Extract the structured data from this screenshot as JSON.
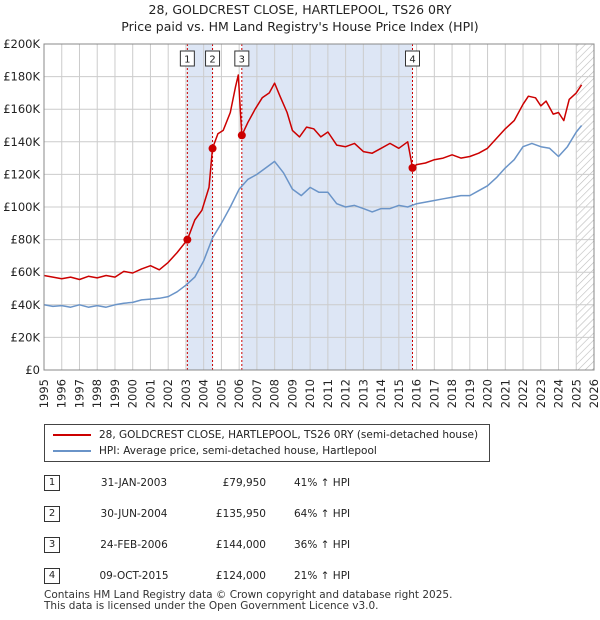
{
  "title": "28, GOLDCREST CLOSE, HARTLEPOOL, TS26 0RY",
  "subtitle": "Price paid vs. HM Land Registry's House Price Index (HPI)",
  "colors": {
    "property": "#cc0000",
    "hpi": "#6a94c8",
    "band": "#dde6f5",
    "grid": "#cccccc",
    "marker_line": "#cc0000",
    "hatch": "#bbbbbb"
  },
  "chart_data": {
    "type": "line",
    "title": "28, GOLDCREST CLOSE, HARTLEPOOL, TS26 0RY",
    "subtitle": "Price paid vs. HM Land Registry's House Price Index (HPI)",
    "xlim": [
      1995,
      2026
    ],
    "ylim": [
      0,
      200000
    ],
    "y_ticks": [
      0,
      20000,
      40000,
      60000,
      80000,
      100000,
      120000,
      140000,
      160000,
      180000,
      200000
    ],
    "y_tick_labels": [
      "£0",
      "£20K",
      "£40K",
      "£60K",
      "£80K",
      "£100K",
      "£120K",
      "£140K",
      "£160K",
      "£180K",
      "£200K"
    ],
    "x_ticks": [
      1995,
      1996,
      1997,
      1998,
      1999,
      2000,
      2001,
      2002,
      2003,
      2004,
      2005,
      2006,
      2007,
      2008,
      2009,
      2010,
      2011,
      2012,
      2013,
      2014,
      2015,
      2016,
      2017,
      2018,
      2019,
      2020,
      2021,
      2022,
      2023,
      2024,
      2025,
      2026
    ],
    "grid": true,
    "shaded_periods": [
      [
        2003.08,
        2004.5
      ],
      [
        2006.15,
        2015.77
      ]
    ],
    "hatched_from": 2025.0,
    "series": [
      {
        "name": "28, GOLDCREST CLOSE, HARTLEPOOL, TS26 0RY (semi-detached house)",
        "points": [
          [
            1995.0,
            58000
          ],
          [
            1995.5,
            57000
          ],
          [
            1996.0,
            56000
          ],
          [
            1996.5,
            57000
          ],
          [
            1997.0,
            55500
          ],
          [
            1997.5,
            57500
          ],
          [
            1998.0,
            56500
          ],
          [
            1998.5,
            58000
          ],
          [
            1999.0,
            57000
          ],
          [
            1999.5,
            60500
          ],
          [
            2000.0,
            59500
          ],
          [
            2000.5,
            62000
          ],
          [
            2001.0,
            64000
          ],
          [
            2001.5,
            61500
          ],
          [
            2002.0,
            66000
          ],
          [
            2002.5,
            72000
          ],
          [
            2003.08,
            79950
          ],
          [
            2003.5,
            92000
          ],
          [
            2003.9,
            98000
          ],
          [
            2004.3,
            112000
          ],
          [
            2004.5,
            135950
          ],
          [
            2004.8,
            145000
          ],
          [
            2005.1,
            147000
          ],
          [
            2005.5,
            158000
          ],
          [
            2005.8,
            174000
          ],
          [
            2005.95,
            181000
          ],
          [
            2006.15,
            144000
          ],
          [
            2006.5,
            152000
          ],
          [
            2006.9,
            160000
          ],
          [
            2007.3,
            167000
          ],
          [
            2007.7,
            170000
          ],
          [
            2008.0,
            176000
          ],
          [
            2008.3,
            168000
          ],
          [
            2008.7,
            158000
          ],
          [
            2009.0,
            147000
          ],
          [
            2009.4,
            143000
          ],
          [
            2009.8,
            149000
          ],
          [
            2010.2,
            148000
          ],
          [
            2010.6,
            143000
          ],
          [
            2011.0,
            146000
          ],
          [
            2011.5,
            138000
          ],
          [
            2012.0,
            137000
          ],
          [
            2012.5,
            139000
          ],
          [
            2013.0,
            134000
          ],
          [
            2013.5,
            133000
          ],
          [
            2014.0,
            136000
          ],
          [
            2014.5,
            139000
          ],
          [
            2015.0,
            136000
          ],
          [
            2015.5,
            140000
          ],
          [
            2015.77,
            124000
          ],
          [
            2016.0,
            126000
          ],
          [
            2016.5,
            127000
          ],
          [
            2017.0,
            129000
          ],
          [
            2017.5,
            130000
          ],
          [
            2018.0,
            132000
          ],
          [
            2018.5,
            130000
          ],
          [
            2019.0,
            131000
          ],
          [
            2019.5,
            133000
          ],
          [
            2020.0,
            136000
          ],
          [
            2020.5,
            142000
          ],
          [
            2021.0,
            148000
          ],
          [
            2021.5,
            153000
          ],
          [
            2022.0,
            163000
          ],
          [
            2022.3,
            168000
          ],
          [
            2022.7,
            167000
          ],
          [
            2023.0,
            162000
          ],
          [
            2023.3,
            165000
          ],
          [
            2023.7,
            157000
          ],
          [
            2024.0,
            158000
          ],
          [
            2024.3,
            153000
          ],
          [
            2024.6,
            166000
          ],
          [
            2025.0,
            170000
          ],
          [
            2025.3,
            175000
          ]
        ]
      },
      {
        "name": "HPI: Average price, semi-detached house, Hartlepool",
        "points": [
          [
            1995.0,
            40000
          ],
          [
            1995.5,
            39000
          ],
          [
            1996.0,
            39500
          ],
          [
            1996.5,
            38500
          ],
          [
            1997.0,
            40000
          ],
          [
            1997.5,
            38500
          ],
          [
            1998.0,
            39500
          ],
          [
            1998.5,
            38500
          ],
          [
            1999.0,
            40000
          ],
          [
            1999.5,
            41000
          ],
          [
            2000.0,
            41500
          ],
          [
            2000.5,
            43000
          ],
          [
            2001.0,
            43500
          ],
          [
            2001.5,
            44000
          ],
          [
            2002.0,
            45000
          ],
          [
            2002.5,
            48000
          ],
          [
            2003.0,
            52000
          ],
          [
            2003.5,
            57000
          ],
          [
            2004.0,
            67000
          ],
          [
            2004.5,
            81000
          ],
          [
            2005.0,
            90000
          ],
          [
            2005.5,
            100000
          ],
          [
            2006.0,
            111000
          ],
          [
            2006.5,
            117000
          ],
          [
            2007.0,
            120000
          ],
          [
            2007.5,
            124000
          ],
          [
            2008.0,
            128000
          ],
          [
            2008.5,
            121000
          ],
          [
            2009.0,
            111000
          ],
          [
            2009.5,
            107000
          ],
          [
            2010.0,
            112000
          ],
          [
            2010.5,
            109000
          ],
          [
            2011.0,
            109000
          ],
          [
            2011.5,
            102000
          ],
          [
            2012.0,
            100000
          ],
          [
            2012.5,
            101000
          ],
          [
            2013.0,
            99000
          ],
          [
            2013.5,
            97000
          ],
          [
            2014.0,
            99000
          ],
          [
            2014.5,
            99000
          ],
          [
            2015.0,
            101000
          ],
          [
            2015.5,
            100000
          ],
          [
            2016.0,
            102000
          ],
          [
            2016.5,
            103000
          ],
          [
            2017.0,
            104000
          ],
          [
            2017.5,
            105000
          ],
          [
            2018.0,
            106000
          ],
          [
            2018.5,
            107000
          ],
          [
            2019.0,
            107000
          ],
          [
            2019.5,
            110000
          ],
          [
            2020.0,
            113000
          ],
          [
            2020.5,
            118000
          ],
          [
            2021.0,
            124000
          ],
          [
            2021.5,
            129000
          ],
          [
            2022.0,
            137000
          ],
          [
            2022.5,
            139000
          ],
          [
            2023.0,
            137000
          ],
          [
            2023.5,
            136000
          ],
          [
            2024.0,
            131000
          ],
          [
            2024.5,
            137000
          ],
          [
            2025.0,
            146000
          ],
          [
            2025.3,
            150000
          ]
        ]
      }
    ],
    "transactions": [
      {
        "label": "1",
        "x": 2003.08,
        "y": 79950
      },
      {
        "label": "2",
        "x": 2004.5,
        "y": 135950
      },
      {
        "label": "3",
        "x": 2006.15,
        "y": 144000
      },
      {
        "label": "4",
        "x": 2015.77,
        "y": 124000
      }
    ]
  },
  "legend": {
    "property_label": "28, GOLDCREST CLOSE, HARTLEPOOL, TS26 0RY (semi-detached house)",
    "hpi_label": "HPI: Average price, semi-detached house, Hartlepool"
  },
  "transactions_table": [
    {
      "num": "1",
      "date": "31-JAN-2003",
      "price": "£79,950",
      "hpi": "41% ↑ HPI"
    },
    {
      "num": "2",
      "date": "30-JUN-2004",
      "price": "£135,950",
      "hpi": "64% ↑ HPI"
    },
    {
      "num": "3",
      "date": "24-FEB-2006",
      "price": "£144,000",
      "hpi": "36% ↑ HPI"
    },
    {
      "num": "4",
      "date": "09-OCT-2015",
      "price": "£124,000",
      "hpi": "21% ↑ HPI"
    }
  ],
  "footer": {
    "line1": "Contains HM Land Registry data © Crown copyright and database right 2025.",
    "line2": "This data is licensed under the Open Government Licence v3.0."
  }
}
